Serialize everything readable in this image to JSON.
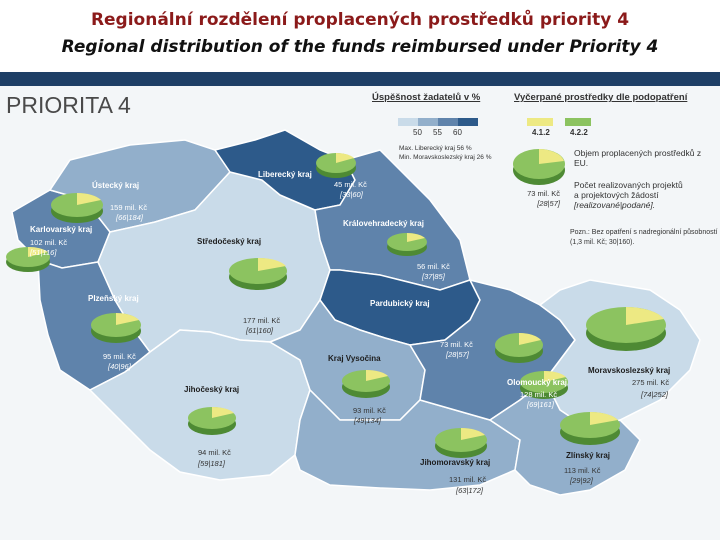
{
  "header": {
    "title_cz": "Regionální rozdělení proplacených prostředků priority 4",
    "title_en": "Regional distribution of the funds reimbursed under Priority 4"
  },
  "map": {
    "heading": "PRIORITA 4",
    "legend": {
      "success_title": "Úspěšnost žadatelů v %",
      "success_scale": [
        "50",
        "55",
        "60"
      ],
      "success_colors": [
        "#c9dbe9",
        "#92afcb",
        "#5f83ab",
        "#2d5a8a"
      ],
      "max_note": "Max. Liberecký kraj 56 %",
      "min_note": "Min. Moravskoslezský kraj 26 %",
      "funds_title": "Vyčerpané prostředky dle podopatření",
      "funds_codes": [
        "4.1.2",
        "4.2.2"
      ],
      "funds_colors": [
        "#ede983",
        "#8cc360"
      ],
      "pie_sample_value": "73 mil. Kč",
      "pie_sample_ratio": "[28|57]",
      "desc_funds": "Objem proplacených prostředků z EU.",
      "desc_projects_1": "Počet realizovaných projektů",
      "desc_projects_2": "a projektových žádostí",
      "desc_projects_3": "[realizované|podané].",
      "note_1": "Pozn.: Bez opatření s nadregionální působností",
      "note_2": "(1,3 mil. Kč; 30|160)."
    },
    "regions": [
      {
        "name": "Ústecký kraj",
        "value": "159 mil. Kč",
        "ratio": "[66|184]"
      },
      {
        "name": "Liberecký kraj",
        "value": "45 mil. Kč",
        "ratio": "[33|60]"
      },
      {
        "name": "Karlovarský kraj",
        "value": "102 mil. Kč",
        "ratio": "[51|116]"
      },
      {
        "name": "Středočeský kraj",
        "value": "177 mil. Kč",
        "ratio": "[61|160]"
      },
      {
        "name": "Královehradecký kraj",
        "value": "56 mil. Kč",
        "ratio": "[37|85]"
      },
      {
        "name": "Plzeňský kraj",
        "value": "95 mil. Kč",
        "ratio": "[40|96]"
      },
      {
        "name": "Pardubický kraj",
        "value": "73 mil. Kč",
        "ratio": "[28|57]"
      },
      {
        "name": "Kraj Vysočina",
        "value": "93 mil. Kč",
        "ratio": "[49|134]"
      },
      {
        "name": "Jihočeský kraj",
        "value": "94 mil. Kč",
        "ratio": "[59|181]"
      },
      {
        "name": "Olomoucký kraj",
        "value": "128 mil. Kč",
        "ratio": "[69|161]"
      },
      {
        "name": "Moravskoslezský kraj",
        "value": "275 mil. Kč",
        "ratio": "[74|252]"
      },
      {
        "name": "Jihomoravský kraj",
        "value": "131 mil. Kč",
        "ratio": "[63|172]"
      },
      {
        "name": "Zlínský kraj",
        "value": "113 mil. Kč",
        "ratio": "[29|92]"
      }
    ]
  }
}
